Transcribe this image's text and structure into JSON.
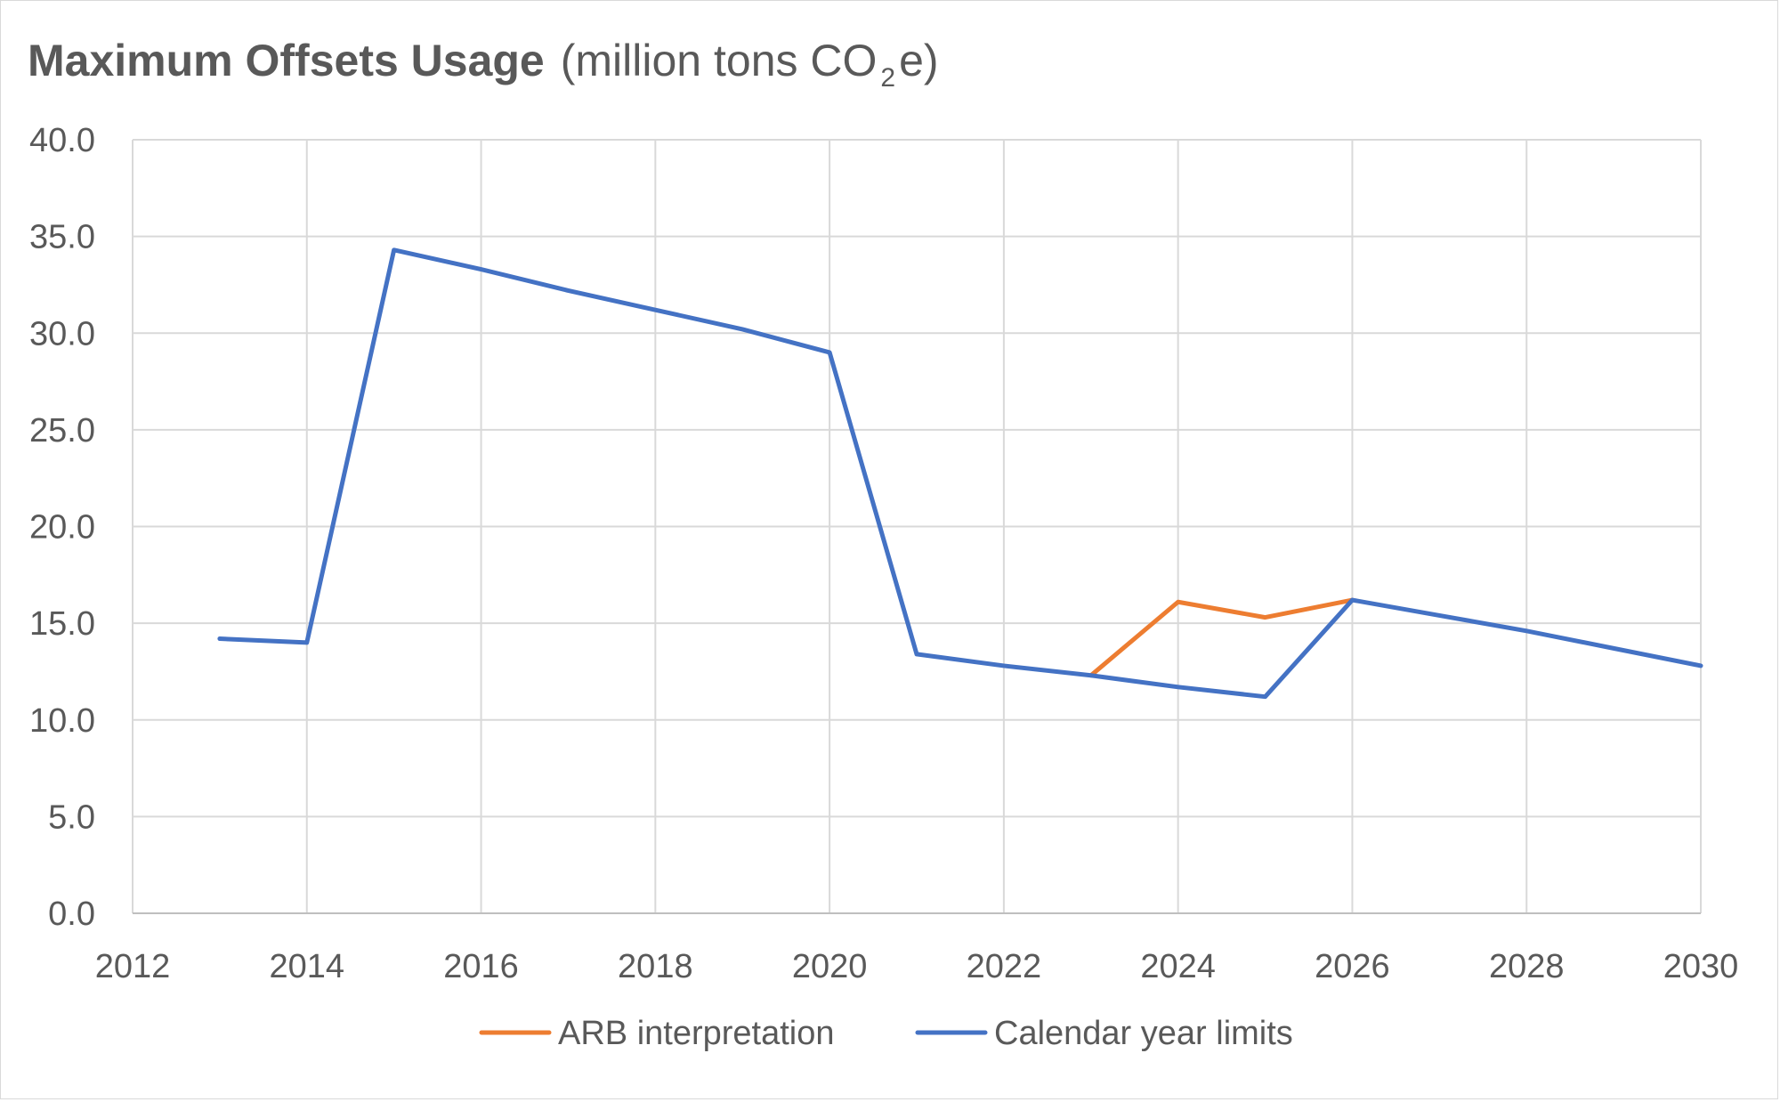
{
  "chart_data": {
    "type": "line",
    "title": "Maximum Offsets Usage",
    "subtitle_prefix": "(million tons CO",
    "subtitle_subscript": "2",
    "subtitle_suffix": "e)",
    "xlabel": "",
    "ylabel": "",
    "xlim": [
      2012,
      2030
    ],
    "ylim": [
      0,
      40
    ],
    "x_ticks": [
      "2012",
      "2014",
      "2016",
      "2018",
      "2020",
      "2022",
      "2024",
      "2026",
      "2028",
      "2030"
    ],
    "y_ticks": [
      "0.0",
      "5.0",
      "10.0",
      "15.0",
      "20.0",
      "25.0",
      "30.0",
      "35.0",
      "40.0"
    ],
    "grid": true,
    "legend_position": "bottom",
    "series": [
      {
        "name": "ARB interpretation",
        "color": "#ed7d31",
        "x": [
          2023,
          2024,
          2025,
          2026
        ],
        "values": [
          12.3,
          16.1,
          15.3,
          16.2
        ]
      },
      {
        "name": "Calendar year limits",
        "color": "#4472c4",
        "x": [
          2013,
          2014,
          2015,
          2016,
          2017,
          2018,
          2019,
          2020,
          2021,
          2022,
          2023,
          2024,
          2025,
          2026,
          2027,
          2028,
          2029,
          2030
        ],
        "values": [
          14.2,
          14.0,
          34.3,
          33.3,
          32.2,
          31.2,
          30.2,
          29.0,
          13.4,
          12.8,
          12.3,
          11.7,
          11.2,
          16.2,
          15.4,
          14.6,
          13.7,
          12.8
        ]
      }
    ]
  }
}
